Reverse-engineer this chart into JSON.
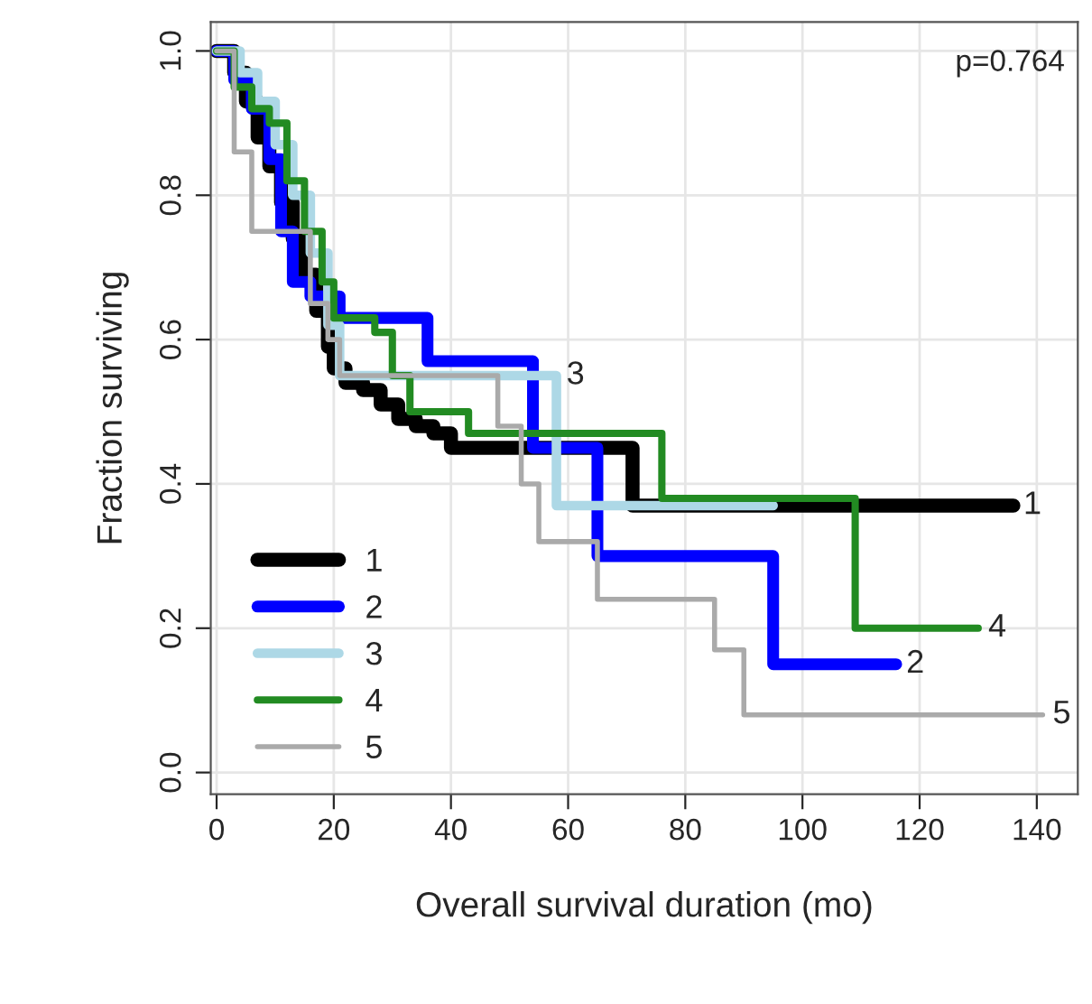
{
  "chart_data": {
    "type": "step",
    "xlabel": "Overall survival duration (mo)",
    "ylabel": "Fraction surviving",
    "series": [
      {
        "name": "1",
        "color": "#000000",
        "x": [
          0,
          3,
          5,
          7,
          9,
          11,
          13,
          15,
          17,
          19,
          20,
          22,
          25,
          28,
          31,
          34,
          37,
          40,
          71,
          136
        ],
        "values": [
          1.0,
          0.97,
          0.93,
          0.88,
          0.84,
          0.79,
          0.74,
          0.69,
          0.64,
          0.59,
          0.56,
          0.54,
          0.53,
          0.51,
          0.49,
          0.48,
          0.47,
          0.45,
          0.37,
          0.37
        ]
      },
      {
        "name": "2",
        "color": "#0000ff",
        "x": [
          0,
          3,
          6,
          9,
          11,
          13,
          16,
          21,
          36,
          54,
          65,
          95,
          116
        ],
        "values": [
          1.0,
          0.96,
          0.92,
          0.85,
          0.75,
          0.68,
          0.66,
          0.63,
          0.57,
          0.45,
          0.3,
          0.15,
          0.15
        ]
      },
      {
        "name": "3",
        "color": "#add8e6",
        "x": [
          0,
          4,
          7,
          10,
          13,
          16,
          19,
          21,
          58,
          95
        ],
        "values": [
          1.0,
          0.97,
          0.93,
          0.87,
          0.8,
          0.72,
          0.62,
          0.55,
          0.37,
          0.37
        ]
      },
      {
        "name": "4",
        "color": "#228b22",
        "x": [
          0,
          3,
          6,
          9,
          12,
          15,
          18,
          20,
          27,
          30,
          33,
          43,
          76,
          109,
          130
        ],
        "values": [
          1.0,
          0.95,
          0.92,
          0.9,
          0.82,
          0.75,
          0.68,
          0.63,
          0.61,
          0.55,
          0.5,
          0.47,
          0.38,
          0.2,
          0.2
        ]
      },
      {
        "name": "5",
        "color": "#aaaaaa",
        "x": [
          0,
          3,
          6,
          16,
          19,
          21,
          48,
          52,
          55,
          65,
          85,
          90,
          141
        ],
        "values": [
          1.0,
          0.86,
          0.75,
          0.65,
          0.6,
          0.55,
          0.48,
          0.4,
          0.32,
          0.24,
          0.17,
          0.08,
          0.08
        ]
      }
    ],
    "annotations": [
      "p=0.764",
      {
        "text": "1",
        "x": 136,
        "y": 0.37
      },
      {
        "text": "2",
        "x": 116,
        "y": 0.15
      },
      {
        "text": "3",
        "x": 58,
        "y": 0.55
      },
      {
        "text": "4",
        "x": 130,
        "y": 0.2
      },
      {
        "text": "5",
        "x": 141,
        "y": 0.08
      }
    ],
    "xlim": [
      -1,
      147
    ],
    "ylim": [
      -0.03,
      1.04
    ],
    "xticks": [
      0,
      20,
      40,
      60,
      80,
      100,
      120,
      140
    ],
    "yticks": [
      {
        "value": 0,
        "label": "0.0"
      },
      {
        "value": 0.2,
        "label": "0.2"
      },
      {
        "value": 0.4,
        "label": "0.4"
      },
      {
        "value": 0.6,
        "label": "0.6"
      },
      {
        "value": 0.8,
        "label": "0.8"
      },
      {
        "value": 1,
        "label": "1.0"
      }
    ],
    "grid": true,
    "legend": "bottom left"
  }
}
